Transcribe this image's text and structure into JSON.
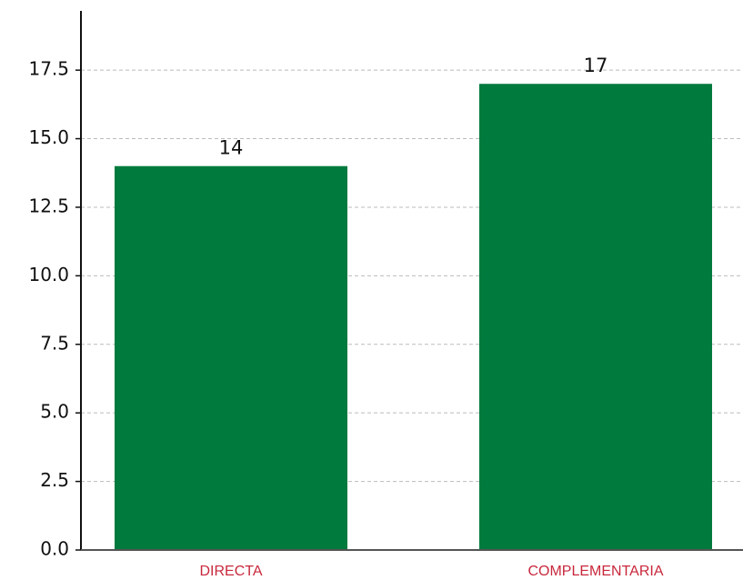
{
  "chart_data": {
    "type": "bar",
    "categories": [
      "DIRECTA",
      "COMPLEMENTARIA"
    ],
    "values": [
      14,
      17
    ],
    "color": "#007a3d",
    "ylim": [
      0,
      19.66
    ],
    "yticks": [
      {
        "value": 0,
        "label": "0.0"
      },
      2.5,
      {
        "value": 5,
        "label": "5.0"
      },
      7.5,
      {
        "value": 10,
        "label": "10.0"
      },
      12.5,
      {
        "value": 15,
        "label": "15.0"
      },
      17.5
    ],
    "grid": true,
    "category_color": "#c8283c"
  }
}
